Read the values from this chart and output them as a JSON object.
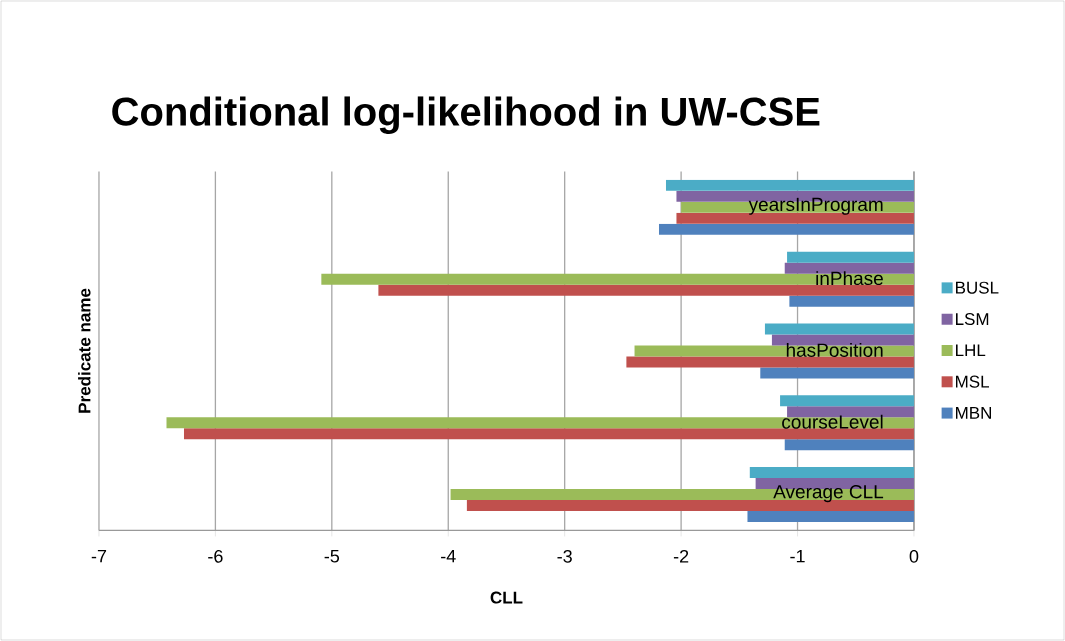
{
  "chart_data": {
    "type": "bar",
    "orientation": "horizontal",
    "title": "Conditional log-likelihood in UW-CSE",
    "xlabel": "CLL",
    "ylabel": "Predicate name",
    "categories": [
      "yearsInProgram",
      "inPhase",
      "hasPosition",
      "courseLevel",
      "Average CLL"
    ],
    "series": [
      {
        "name": "MBN",
        "color": "#4f81bd",
        "values": [
          -2.19,
          -1.07,
          -1.32,
          -1.11,
          -1.43
        ]
      },
      {
        "name": "MSL",
        "color": "#c0504d",
        "values": [
          -2.04,
          -4.6,
          -2.47,
          -6.27,
          -3.84
        ]
      },
      {
        "name": "LHL",
        "color": "#9bbb59",
        "values": [
          -2.0,
          -5.09,
          -2.4,
          -6.42,
          -3.98
        ]
      },
      {
        "name": "LSM",
        "color": "#8064a2",
        "values": [
          -2.04,
          -1.11,
          -1.22,
          -1.09,
          -1.36
        ]
      },
      {
        "name": "BUSL",
        "color": "#4bacc6",
        "values": [
          -2.13,
          -1.09,
          -1.28,
          -1.15,
          -1.41
        ]
      }
    ],
    "xlim": [
      -7,
      0
    ],
    "xticks": [
      -7,
      -6,
      -5,
      -4,
      -3,
      -2,
      -1,
      0
    ],
    "grid": "x",
    "legend": "right"
  }
}
